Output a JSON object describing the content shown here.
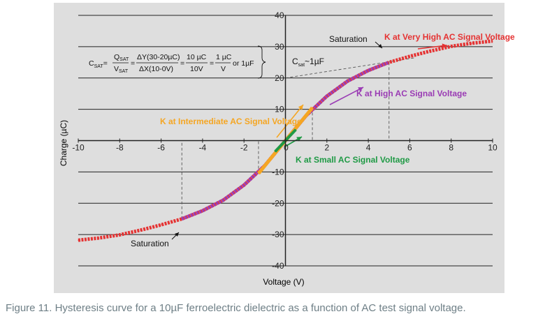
{
  "chart_data": {
    "type": "line",
    "title": "",
    "xlabel": "Voltage (V)",
    "ylabel": "Charge (µC)",
    "xlim": [
      -10,
      10
    ],
    "ylim": [
      -40,
      40
    ],
    "x_ticks": [
      -10,
      -8,
      -6,
      -4,
      -2,
      0,
      2,
      4,
      6,
      8,
      10
    ],
    "y_ticks": [
      -40,
      -30,
      -20,
      -10,
      0,
      10,
      20,
      30,
      40
    ],
    "grid": "horizontal",
    "series": [
      {
        "name": "K at Very High AC Signal Voltage",
        "color": "#e53232",
        "x": [
          -10,
          -9,
          -8,
          -7,
          -6,
          -5,
          -4,
          -3,
          -2,
          -1,
          0,
          1,
          2,
          3,
          4,
          5,
          6,
          7,
          8,
          9,
          10
        ],
        "y": [
          -31.8,
          -31.1,
          -30.1,
          -28.6,
          -26.9,
          -25,
          -22.4,
          -19,
          -14.2,
          -8,
          0,
          8,
          14.2,
          19,
          22.4,
          25,
          26.9,
          28.6,
          30.1,
          31.1,
          31.8
        ]
      },
      {
        "name": "K at High AC Signal Voltage",
        "color": "#9a3cb4",
        "x": [
          -5,
          -4,
          -3,
          -2,
          -1,
          0,
          1,
          2,
          3,
          4,
          5
        ],
        "y": [
          -25,
          -22.4,
          -19,
          -14.2,
          -8,
          0,
          8,
          14.2,
          19,
          22.4,
          25
        ]
      },
      {
        "name": "K at Intermediate AC Signal Voltage",
        "color": "#f5a623",
        "x": [
          -1.3,
          -0.65,
          0,
          0.65,
          1.3
        ],
        "y": [
          -10.5,
          -5.2,
          0,
          5.2,
          10.5
        ]
      },
      {
        "name": "K at Small AC Signal Voltage",
        "color": "#1f9a45",
        "x": [
          -0.5,
          0,
          0.5
        ],
        "y": [
          -3.5,
          0,
          3.5
        ]
      }
    ],
    "annotations": {
      "saturation_top": "Saturation",
      "saturation_bottom": "Saturation",
      "csat_label": "C",
      "csat_sub": "sat",
      "csat_value": "~1µF",
      "formula": {
        "lhs": "C",
        "lhs_sub": "SAT",
        "eq": "=",
        "frac1_num": "Q",
        "frac1_num_sub": "SAT",
        "frac1_den": "V",
        "frac1_den_sub": "SAT",
        "frac2_num": "ΔY(30-20µC)",
        "frac2_den": "ΔX(10-0V)",
        "frac3_num": "10 µC",
        "frac3_den": "10V",
        "frac4_num": "1 µC",
        "frac4_den": "V",
        "tail": "or 1µF"
      }
    }
  },
  "caption": "Figure 11. Hysteresis curve for a 10µF ferroelectric dielectric as a function of AC test signal voltage."
}
